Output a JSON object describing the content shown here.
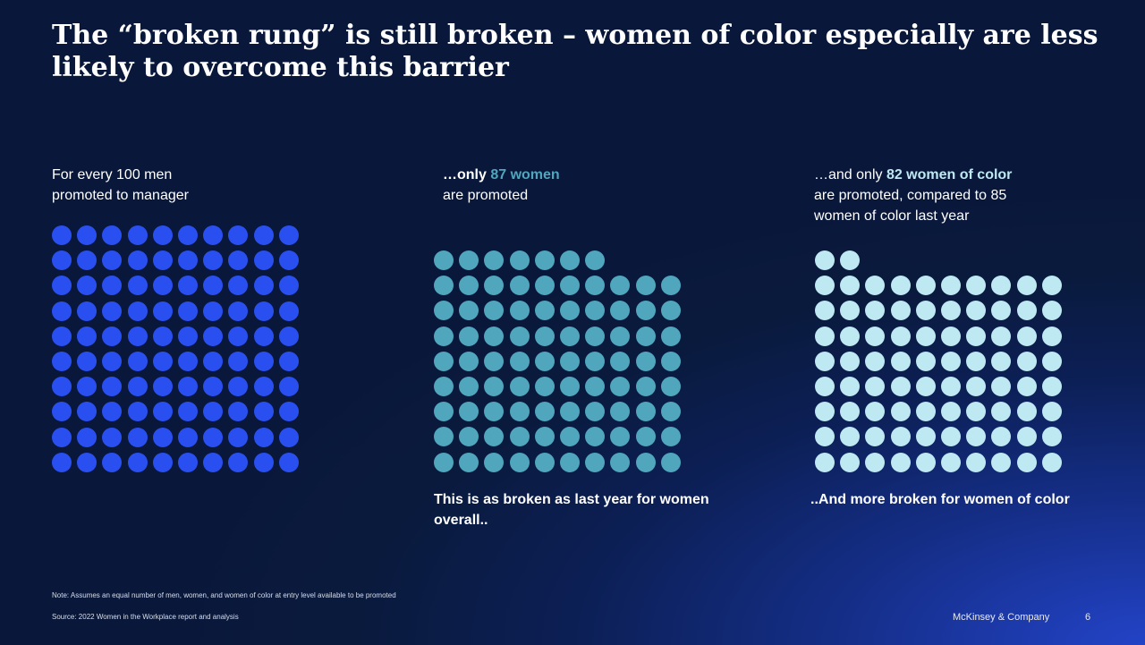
{
  "title": "The “broken rung” is still broken – women of color especially are less likely to overcome this barrier",
  "chart_data": [
    {
      "type": "waffle",
      "label_line1": "For every 100 men",
      "label_line2": "promoted to manager",
      "value": 100,
      "unit": "men",
      "color": "#2a4ff0"
    },
    {
      "type": "waffle",
      "label_prefix": "…only ",
      "label_value": "87 women",
      "label_line2": "are promoted",
      "value": 87,
      "unit": "women",
      "color": "#4fa6bd",
      "takeaway": "This is as broken as last year for women overall.."
    },
    {
      "type": "waffle",
      "label_prefix": "…and only ",
      "label_value": "82 women of color",
      "label_line2": "are promoted, compared to 85",
      "label_line3": "women of color last year",
      "value": 82,
      "unit": "women of color",
      "color": "#bfe9f2",
      "takeaway": "..And more broken for women of color"
    }
  ],
  "footer": {
    "note": "Note: Assumes an equal number of men, women, and women of color at entry level available to be promoted",
    "source": "Source: 2022 Women in the Workplace report and analysis",
    "brand": "McKinsey & Company",
    "page": "6"
  }
}
